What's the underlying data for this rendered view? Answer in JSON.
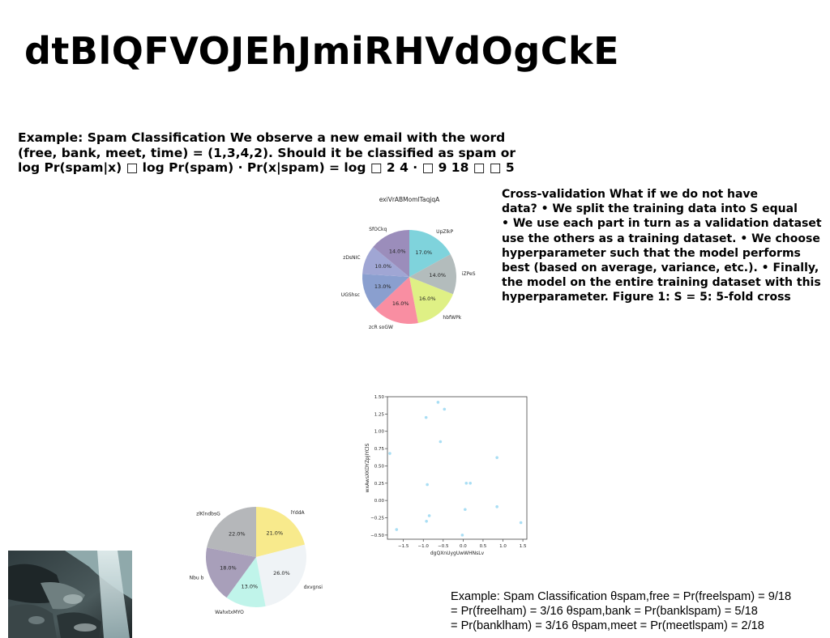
{
  "page": {
    "title": "dtBlQFVOJEhJmiRHVdOgCkE"
  },
  "spam_block": {
    "lines": [
      "Example: Spam Classification We observe a new email with the word",
      "(free, bank, meet, time) = (1,3,4,2). Should it be classified as spam or",
      "log Pr(spam|x) □ log Pr(spam) · Pr(x|spam) = log □ 2 4 · □ 9 18 □ □ 5"
    ]
  },
  "cv_block": {
    "lines": [
      "Cross-validation What if we do not have",
      "data? • We split the training data into S equal",
      "• We use each part in turn as a validation dataset",
      "use the others as a training dataset. • We choose",
      "hyperparameter such that the model performs",
      "best (based on average, variance, etc.). • Finally,",
      "the model on the entire training dataset with this",
      "hyperparameter. Figure 1: S = 5: 5-fold cross"
    ]
  },
  "theta_block": {
    "lines": [
      "Example: Spam Classification θspam,free = Pr(freelspam) = 9/18",
      "= Pr(freelham) = 3/16 θspam,bank = Pr(banklspam) = 5/18",
      "= Pr(banklham) = 3/16 θspam,meet = Pr(meetlspam) = 2/18"
    ]
  },
  "photo": {
    "icon": "waterfall-rocks-photo"
  },
  "chart_data": [
    {
      "type": "pie",
      "title": "exiVrABMomlTaqjqA",
      "start_angle_deg": 90,
      "direction": "clockwise",
      "slices": [
        {
          "label": "UpZlkP",
          "value": 17.0,
          "pct": "17.0%",
          "color": "#7fd3dc"
        },
        {
          "label": "iZPeS",
          "value": 14.0,
          "pct": "14.0%",
          "color": "#b3bcbc"
        },
        {
          "label": "hbfWPk",
          "value": 16.0,
          "pct": "16.0%",
          "color": "#dff085"
        },
        {
          "label": "zcR soGW",
          "value": 16.0,
          "pct": "16.0%",
          "color": "#f98ea2"
        },
        {
          "label": "UGShsc",
          "value": 13.0,
          "pct": "13.0%",
          "color": "#8a9fcf"
        },
        {
          "label": "zDsNIC",
          "value": 10.0,
          "pct": "10.0%",
          "color": "#a0a6d4"
        },
        {
          "label": "SfOCkq",
          "value": 14.0,
          "pct": "14.0%",
          "color": "#9b8dbb"
        }
      ]
    },
    {
      "type": "scatter",
      "title": "",
      "xlabel": "dgQXnUygUwWHNsLv",
      "ylabel": "wxAwsXKDYZpJIYClS",
      "xlim": [
        -1.9,
        1.6
      ],
      "ylim": [
        -0.56,
        1.5
      ],
      "xticks": [
        -1.5,
        -1.0,
        -0.5,
        0.0,
        0.5,
        1.0,
        1.5
      ],
      "xtick_labels": [
        "−1.5",
        "−1.0",
        "−0.5",
        "0.0",
        "0.5",
        "1.0",
        "1.5"
      ],
      "yticks": [
        -0.5,
        -0.25,
        0.0,
        0.25,
        0.5,
        0.75,
        1.0,
        1.25,
        1.5
      ],
      "ytick_labels": [
        "−0.50",
        "−0.25",
        "0.00",
        "0.25",
        "0.50",
        "0.75",
        "1.00",
        "1.25",
        "1.50"
      ],
      "grid": false,
      "color": "#a9def4",
      "points": [
        {
          "x": -1.84,
          "y": 0.68
        },
        {
          "x": -1.67,
          "y": -0.42
        },
        {
          "x": -0.93,
          "y": 1.2
        },
        {
          "x": -0.63,
          "y": 1.42
        },
        {
          "x": -0.57,
          "y": 0.85
        },
        {
          "x": -0.47,
          "y": 1.32
        },
        {
          "x": -0.9,
          "y": 0.23
        },
        {
          "x": -0.85,
          "y": -0.22
        },
        {
          "x": -0.92,
          "y": -0.3
        },
        {
          "x": 0.08,
          "y": 0.25
        },
        {
          "x": 0.18,
          "y": 0.25
        },
        {
          "x": 0.05,
          "y": -0.13
        },
        {
          "x": -0.02,
          "y": -0.5
        },
        {
          "x": 0.85,
          "y": 0.62
        },
        {
          "x": 0.85,
          "y": -0.09
        },
        {
          "x": 1.45,
          "y": -0.32
        }
      ]
    },
    {
      "type": "pie",
      "title": "",
      "start_angle_deg": 90,
      "direction": "clockwise",
      "slices": [
        {
          "label": "lYddA",
          "value": 21.0,
          "pct": "21.0%",
          "color": "#f8ea8c"
        },
        {
          "label": "dxvgnsi",
          "value": 26.0,
          "pct": "26.0%",
          "color": "#eff3f6"
        },
        {
          "label": "WahxtxMYO",
          "value": 13.0,
          "pct": "13.0%",
          "color": "#c0f4ea"
        },
        {
          "label": "Nbu b",
          "value": 18.0,
          "pct": "18.0%",
          "color": "#a89fba"
        },
        {
          "label": "zlKlndbsG",
          "value": 22.0,
          "pct": "22.0%",
          "color": "#b5b7ba"
        }
      ]
    }
  ]
}
